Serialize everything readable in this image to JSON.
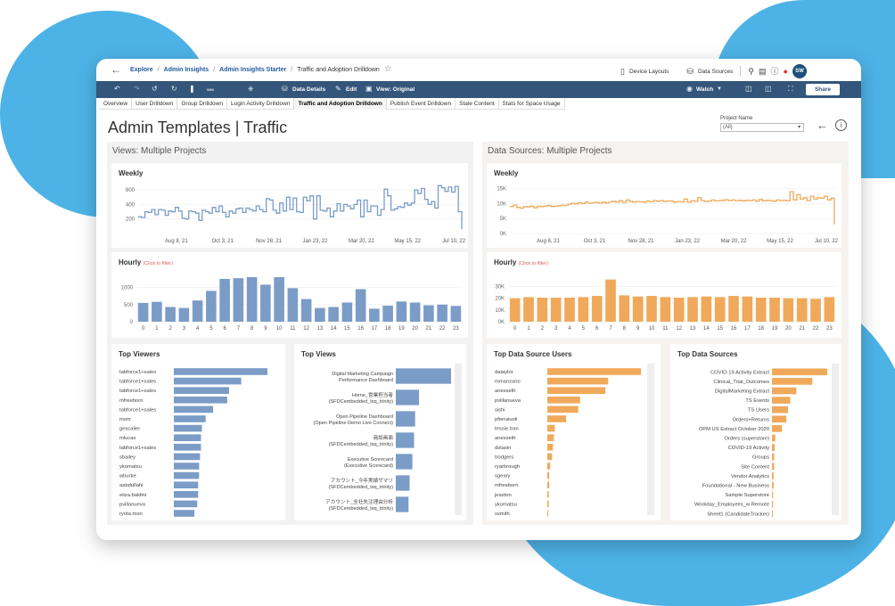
{
  "topbar": {
    "breadcrumbs": [
      "Explore",
      "Admin Insights",
      "Admin Insights Starter",
      "Traffic and Adoption Drilldown"
    ],
    "device_layouts": "Device Layouts",
    "data_sources": "Data Sources",
    "avatar": "SW"
  },
  "toolbar": {
    "data_details": "Data Details",
    "edit": "Edit",
    "view": "View: Original",
    "watch": "Watch",
    "share": "Share"
  },
  "tabs": [
    "Overview",
    "User Drilldown",
    "Group Drilldown",
    "Login Activity Drilldown",
    "Traffic and Adoption Drilldown",
    "Publish Event Drilldown",
    "Stale Content",
    "Stats for Space Usage"
  ],
  "active_tab": 4,
  "page": {
    "title_bold": "Admin Templates",
    "title_sep": "|",
    "title_rest": "Traffic",
    "project_label": "Project Name",
    "project_value": "(All)"
  },
  "left": {
    "section_title": "Views: Multiple Projects",
    "weekly_title": "Weekly",
    "hourly_title": "Hourly",
    "hourly_hint": "(Click to filter)",
    "top_viewers_title": "Top Viewers",
    "top_views_title": "Top Views"
  },
  "right": {
    "section_title": "Data Sources: Multiple Projects",
    "weekly_title": "Weekly",
    "hourly_title": "Hourly",
    "hourly_hint": "(Click to filter)",
    "top_users_title": "Top Data Source Users",
    "top_sources_title": "Top Data Sources"
  },
  "colors": {
    "blue": "#7b9cc7",
    "orange": "#f0a95a",
    "toolbar": "#33567a",
    "blob": "#4db3e6"
  },
  "chart_data": [
    {
      "id": "views_weekly",
      "type": "line",
      "title": "Weekly",
      "x_ticks": [
        "Aug 8, 21",
        "Oct 3, 21",
        "Nov 28, 21",
        "Jan 23, 22",
        "Mar 20, 22",
        "May 15, 22",
        "Jul 10, 22"
      ],
      "y_ticks": [
        200,
        400,
        600
      ],
      "ylim": [
        0,
        700
      ],
      "values": [
        230,
        220,
        300,
        290,
        330,
        260,
        330,
        320,
        250,
        310,
        300,
        360,
        310,
        210,
        200,
        310,
        300,
        280,
        180,
        320,
        300,
        280,
        360,
        300,
        380,
        290,
        230,
        310,
        280,
        340,
        350,
        290,
        350,
        330,
        310,
        380,
        330,
        300,
        480,
        460,
        320,
        280,
        420,
        310,
        500,
        330,
        490,
        300,
        290,
        500,
        450,
        520,
        200,
        520,
        320,
        310,
        350,
        230,
        310,
        410,
        310,
        400,
        380,
        340,
        400,
        460,
        230,
        460,
        300,
        380,
        380,
        250,
        330,
        610,
        520,
        320,
        340,
        370,
        360,
        420,
        390,
        420,
        600,
        550,
        620,
        470,
        400,
        440,
        350,
        660,
        630,
        580,
        640,
        570,
        650,
        300,
        60
      ]
    },
    {
      "id": "views_hourly",
      "type": "bar",
      "title": "Hourly",
      "categories": [
        "0",
        "1",
        "2",
        "3",
        "4",
        "5",
        "6",
        "7",
        "8",
        "9",
        "10",
        "11",
        "12",
        "13",
        "14",
        "15",
        "16",
        "17",
        "18",
        "19",
        "20",
        "21",
        "22",
        "23"
      ],
      "y_ticks": [
        0,
        500,
        1000
      ],
      "ylim": [
        0,
        1300
      ],
      "values": [
        550,
        580,
        430,
        400,
        620,
        900,
        1250,
        1270,
        1300,
        1080,
        1300,
        980,
        660,
        400,
        430,
        560,
        950,
        380,
        470,
        590,
        560,
        480,
        500,
        460
      ]
    },
    {
      "id": "ds_weekly",
      "type": "line",
      "title": "Weekly",
      "x_ticks": [
        "Aug 8, 21",
        "Oct 3, 21",
        "Nov 28, 21",
        "Jan 23, 22",
        "Mar 20, 22",
        "May 15, 22",
        "Jul 10, 22"
      ],
      "y_ticks": [
        "0K",
        "5K",
        "10K",
        "15K"
      ],
      "ylim": [
        0,
        17000
      ],
      "values": [
        9000,
        9500,
        8700,
        8500,
        9000,
        8900,
        9200,
        8600,
        9100,
        9000,
        9200,
        9400,
        9000,
        9100,
        9300,
        9500,
        9400,
        9800,
        10100,
        9900,
        10300,
        10000,
        10500,
        10100,
        10300,
        10400,
        10100,
        10500,
        10200,
        10600,
        10800,
        10500,
        11000,
        10400,
        11200,
        10800,
        10500,
        10700,
        10600,
        10500,
        10900,
        10600,
        11000,
        10800,
        11000,
        10700,
        10900,
        10800,
        10500,
        10700,
        10600,
        11500,
        10500,
        11000,
        10800,
        12000,
        11000,
        10700,
        10800,
        11200,
        10900,
        11000,
        11100,
        11300,
        11000,
        11200,
        11000,
        11100,
        10900,
        11100,
        11000,
        11200,
        10800,
        11400,
        10900,
        11100,
        11000,
        10800,
        11200,
        11000,
        11100,
        10900,
        14000,
        11200,
        13000,
        11500,
        12000,
        11000,
        12500,
        11500,
        12000,
        11800,
        12500,
        11200,
        11800,
        3000
      ]
    },
    {
      "id": "ds_hourly",
      "type": "bar",
      "title": "Hourly",
      "categories": [
        "0",
        "1",
        "2",
        "3",
        "4",
        "5",
        "6",
        "7",
        "8",
        "9",
        "10",
        "11",
        "12",
        "13",
        "14",
        "15",
        "16",
        "17",
        "18",
        "19",
        "20",
        "21",
        "22",
        "23"
      ],
      "y_ticks": [
        "0K",
        "10K",
        "20K",
        "30K"
      ],
      "ylim": [
        0,
        38000
      ],
      "values": [
        20000,
        21000,
        20500,
        20500,
        20500,
        21000,
        22000,
        36000,
        22500,
        21500,
        22000,
        21000,
        20500,
        21000,
        21500,
        21000,
        22000,
        21500,
        20500,
        20500,
        20000,
        20000,
        19500,
        21000
      ]
    },
    {
      "id": "top_viewers",
      "type": "bar",
      "title": "Top Viewers",
      "categories": [
        "tabforce1+sales",
        "tabforce1+sales",
        "tabforce1+sales",
        "mfreeborn",
        "tabforce1+sales",
        "msm",
        "gescalier",
        "mlucas",
        "tabforce1+sales",
        "sbailey",
        "ykomatsu",
        "wburke",
        "aabdullahi",
        "eliza.baldini",
        "pvillanueva",
        "ryota.mon"
      ],
      "values": [
        100,
        72,
        59,
        57,
        42,
        34,
        30,
        29,
        29,
        28,
        27,
        27,
        26,
        26,
        25,
        22
      ]
    },
    {
      "id": "top_views",
      "type": "bar",
      "title": "Top Views",
      "categories": [
        [
          "Digital Marketing Campaign",
          "Performance Dashboard"
        ],
        [
          "Home_営業担当者",
          "(SFDCembedded_tsq_trinity)"
        ],
        [
          "Open Pipeline Dashboard",
          "(Open Pipeline Demo Live Connect)"
        ],
        [
          "商談画面",
          "(SFDCembedded_tsq_trinity)"
        ],
        [
          "Executive Scorecard",
          "(Executive Scorecard)"
        ],
        [
          "アカウント_今年実績ザマリ",
          "(SFDCembedded_tsq_trinity)"
        ],
        [
          "アカウント_全社失注理由分析",
          "(SFDCembedded_tsq_trinity)"
        ]
      ],
      "values": [
        100,
        42,
        35,
        33,
        30,
        25,
        23
      ]
    },
    {
      "id": "top_ds_users",
      "type": "bar",
      "title": "Top Data Source Users",
      "categories": [
        "dataylor",
        "mmanzano",
        "anesseth",
        "pvillanueva",
        "sishi",
        "pferraiuoli",
        "tessie.tran",
        "anesseth",
        "dstasin",
        "trodgers",
        "ryarbrough",
        "sgeary",
        "mfreeborn",
        "jeaston",
        "ykomatsu",
        "ssmith"
      ],
      "values": [
        100,
        65,
        62,
        35,
        33,
        20,
        8,
        7,
        6,
        5,
        3,
        2,
        2,
        1.5,
        1.5,
        1
      ]
    },
    {
      "id": "top_data_sources",
      "type": "bar",
      "title": "Top Data Sources",
      "categories": [
        "COVID-19 Activity Extract",
        "Clinical_Trial_Outcomes",
        "DigitalMarketing Extract",
        "TS Events",
        "TS Users",
        "Orders+Returns",
        "OPM US Extract October 2020",
        "Orders (superstore)",
        "COVID-19 Activity",
        "Groups",
        "Site Content",
        "Vendor Analytics",
        "Foundational - New Business",
        "Sample Superstore",
        "Workday_Employees_w Remote",
        "Sheet1 (CandidateTracker)"
      ],
      "values": [
        100,
        73,
        44,
        33,
        29,
        26,
        18,
        6,
        5,
        4,
        4,
        3,
        3,
        2,
        2,
        1.5
      ]
    }
  ]
}
